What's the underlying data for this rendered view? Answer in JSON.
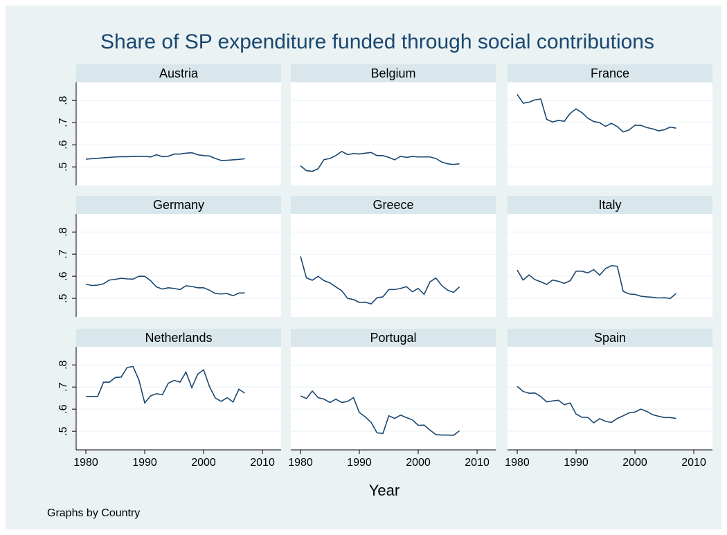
{
  "chart_data": {
    "type": "line",
    "title": "Share of SP expenditure funded through social contributions",
    "x_label": "Year",
    "note": "Graphs by Country",
    "color": "#1a476f",
    "grid": true,
    "x": [
      1980,
      1981,
      1982,
      1983,
      1984,
      1985,
      1986,
      1987,
      1988,
      1989,
      1990,
      1991,
      1992,
      1993,
      1994,
      1995,
      1996,
      1997,
      1998,
      1999,
      2000,
      2001,
      2002,
      2003,
      2004,
      2005,
      2006,
      2007
    ],
    "xlim": [
      1978.35,
      2013.17
    ],
    "xticks": [
      1980,
      1990,
      2000,
      2010
    ],
    "ylim": [
      0.416,
      0.882
    ],
    "yticks": [
      {
        "value": 0.5,
        "label": ".5"
      },
      {
        "value": 0.6,
        "label": ".6"
      },
      {
        "value": 0.7,
        "label": ".7"
      },
      {
        "value": 0.8,
        "label": ".8"
      }
    ],
    "series": [
      {
        "name": "Austria",
        "values": [
          0.535,
          0.537,
          0.539,
          0.541,
          0.543,
          0.545,
          0.546,
          0.546,
          0.547,
          0.547,
          0.548,
          0.545,
          0.555,
          0.546,
          0.548,
          0.558,
          0.558,
          0.562,
          0.564,
          0.555,
          0.551,
          0.549,
          0.538,
          0.529,
          0.53,
          0.532,
          0.534,
          0.537
        ]
      },
      {
        "name": "Belgium",
        "values": [
          0.505,
          0.483,
          0.48,
          0.492,
          0.533,
          0.538,
          0.551,
          0.57,
          0.556,
          0.56,
          0.558,
          0.562,
          0.565,
          0.551,
          0.551,
          0.543,
          0.532,
          0.548,
          0.543,
          0.547,
          0.545,
          0.545,
          0.545,
          0.538,
          0.522,
          0.514,
          0.511,
          0.514
        ]
      },
      {
        "name": "France",
        "values": [
          0.828,
          0.788,
          0.792,
          0.803,
          0.807,
          0.715,
          0.703,
          0.71,
          0.706,
          0.742,
          0.762,
          0.745,
          0.72,
          0.705,
          0.7,
          0.683,
          0.697,
          0.682,
          0.658,
          0.667,
          0.688,
          0.688,
          0.678,
          0.672,
          0.663,
          0.668,
          0.68,
          0.675
        ]
      },
      {
        "name": "Germany",
        "values": [
          0.565,
          0.558,
          0.56,
          0.566,
          0.583,
          0.586,
          0.591,
          0.588,
          0.587,
          0.6,
          0.6,
          0.58,
          0.552,
          0.542,
          0.548,
          0.545,
          0.54,
          0.557,
          0.554,
          0.548,
          0.548,
          0.537,
          0.522,
          0.52,
          0.522,
          0.512,
          0.524,
          0.525
        ]
      },
      {
        "name": "Greece",
        "values": [
          0.69,
          0.593,
          0.582,
          0.6,
          0.58,
          0.57,
          0.552,
          0.535,
          0.5,
          0.495,
          0.482,
          0.483,
          0.475,
          0.503,
          0.507,
          0.54,
          0.54,
          0.545,
          0.553,
          0.53,
          0.545,
          0.518,
          0.575,
          0.592,
          0.558,
          0.537,
          0.527,
          0.552
        ]
      },
      {
        "name": "Italy",
        "values": [
          0.628,
          0.583,
          0.606,
          0.585,
          0.575,
          0.563,
          0.583,
          0.577,
          0.568,
          0.58,
          0.623,
          0.623,
          0.615,
          0.63,
          0.605,
          0.635,
          0.648,
          0.645,
          0.532,
          0.52,
          0.518,
          0.51,
          0.507,
          0.505,
          0.502,
          0.503,
          0.5,
          0.522
        ]
      },
      {
        "name": "Netherlands",
        "values": [
          0.658,
          0.657,
          0.657,
          0.722,
          0.722,
          0.743,
          0.745,
          0.788,
          0.793,
          0.733,
          0.628,
          0.66,
          0.67,
          0.665,
          0.717,
          0.73,
          0.722,
          0.768,
          0.697,
          0.758,
          0.778,
          0.702,
          0.65,
          0.635,
          0.652,
          0.632,
          0.69,
          0.672
        ]
      },
      {
        "name": "Portugal",
        "values": [
          0.66,
          0.648,
          0.682,
          0.652,
          0.645,
          0.63,
          0.645,
          0.63,
          0.635,
          0.652,
          0.585,
          0.565,
          0.54,
          0.493,
          0.49,
          0.57,
          0.558,
          0.573,
          0.562,
          0.552,
          0.527,
          0.528,
          0.505,
          0.485,
          0.483,
          0.483,
          0.482,
          0.502
        ]
      },
      {
        "name": "Spain",
        "values": [
          0.703,
          0.68,
          0.672,
          0.673,
          0.657,
          0.633,
          0.637,
          0.64,
          0.62,
          0.628,
          0.578,
          0.563,
          0.563,
          0.538,
          0.557,
          0.545,
          0.54,
          0.558,
          0.57,
          0.583,
          0.587,
          0.6,
          0.59,
          0.575,
          0.568,
          0.562,
          0.562,
          0.558
        ]
      }
    ]
  }
}
